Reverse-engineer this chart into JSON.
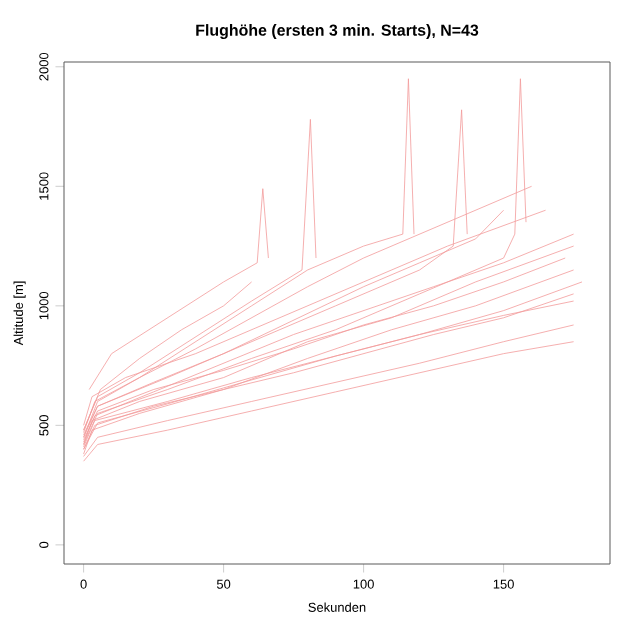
{
  "chart_data": {
    "type": "line",
    "title": "Flughöhe (ersten 3 min. Starts), N=43",
    "xlabel": "Sekunden",
    "ylabel": "Altitude [m]",
    "xlim": [
      -7,
      188
    ],
    "ylim": [
      -80,
      2020
    ],
    "xticks": [
      0,
      50,
      100,
      150
    ],
    "yticks": [
      0,
      500,
      1000,
      1500,
      2000
    ],
    "grid": false,
    "marker": "none",
    "line_style": "solid",
    "series": [
      {
        "color": "#f29a9a",
        "x": [
          0,
          3,
          20,
          50,
          80,
          110,
          140,
          175
        ],
        "values": [
          420,
          520,
          600,
          700,
          850,
          950,
          1100,
          1250
        ]
      },
      {
        "color": "#f29a9a",
        "x": [
          0,
          3,
          20,
          50,
          80,
          110,
          140,
          175
        ],
        "values": [
          380,
          480,
          550,
          650,
          780,
          900,
          1000,
          1150
        ]
      },
      {
        "color": "#f29a9a",
        "x": [
          0,
          5,
          30,
          60,
          90,
          120,
          150,
          175
        ],
        "values": [
          350,
          420,
          480,
          560,
          640,
          720,
          800,
          850
        ]
      },
      {
        "color": "#f29a9a",
        "x": [
          0,
          5,
          20,
          40,
          60,
          80,
          100,
          114,
          116,
          118
        ],
        "values": [
          450,
          600,
          700,
          850,
          1000,
          1150,
          1250,
          1300,
          1950,
          1300
        ]
      },
      {
        "color": "#f29a9a",
        "x": [
          0,
          5,
          20,
          40,
          60,
          78,
          81,
          83
        ],
        "values": [
          480,
          620,
          720,
          870,
          1020,
          1150,
          1780,
          1200
        ]
      },
      {
        "color": "#f29a9a",
        "x": [
          2,
          10,
          30,
          50,
          62,
          64,
          66
        ],
        "values": [
          650,
          800,
          950,
          1100,
          1180,
          1490,
          1200
        ]
      },
      {
        "color": "#f29a9a",
        "x": [
          0,
          5,
          30,
          60,
          90,
          120,
          150,
          154,
          156,
          158
        ],
        "values": [
          420,
          550,
          650,
          780,
          900,
          1050,
          1200,
          1300,
          1950,
          1350
        ]
      },
      {
        "color": "#f29a9a",
        "x": [
          0,
          5,
          30,
          60,
          90,
          120,
          132,
          135,
          137
        ],
        "values": [
          460,
          580,
          700,
          850,
          1000,
          1150,
          1250,
          1820,
          1300
        ]
      },
      {
        "color": "#f29a9a",
        "x": [
          0,
          4,
          25,
          50,
          75,
          100,
          125,
          150,
          175
        ],
        "values": [
          400,
          500,
          580,
          650,
          720,
          800,
          880,
          950,
          1050
        ]
      },
      {
        "color": "#f29a9a",
        "x": [
          0,
          4,
          25,
          50,
          75,
          100,
          125,
          150,
          175
        ],
        "values": [
          430,
          540,
          640,
          760,
          880,
          980,
          1080,
          1180,
          1300
        ]
      },
      {
        "color": "#f29a9a",
        "x": [
          0,
          4,
          20,
          40,
          60,
          80,
          100,
          120,
          140,
          160
        ],
        "values": [
          470,
          600,
          700,
          820,
          950,
          1080,
          1200,
          1300,
          1400,
          1500
        ]
      },
      {
        "color": "#f29a9a",
        "x": [
          0,
          5,
          30,
          60,
          90,
          120,
          150,
          175
        ],
        "values": [
          370,
          450,
          520,
          600,
          680,
          760,
          850,
          920
        ]
      },
      {
        "color": "#f29a9a",
        "x": [
          0,
          3,
          15,
          40,
          70,
          100,
          130,
          165
        ],
        "values": [
          500,
          620,
          700,
          800,
          950,
          1100,
          1250,
          1400
        ]
      },
      {
        "color": "#f29a9a",
        "x": [
          0,
          5,
          25,
          50,
          75,
          100,
          125,
          150,
          172
        ],
        "values": [
          440,
          560,
          650,
          730,
          820,
          920,
          1000,
          1100,
          1200
        ]
      },
      {
        "color": "#f29a9a",
        "x": [
          0,
          5,
          30,
          60,
          90,
          120,
          150,
          175
        ],
        "values": [
          400,
          510,
          590,
          690,
          790,
          880,
          960,
          1020
        ]
      },
      {
        "color": "#f29a9a",
        "x": [
          0,
          6,
          20,
          35,
          50,
          60
        ],
        "values": [
          480,
          650,
          780,
          900,
          1000,
          1100
        ]
      },
      {
        "color": "#f29a9a",
        "x": [
          0,
          5,
          25,
          50,
          75,
          100,
          120,
          140,
          150
        ],
        "values": [
          450,
          580,
          680,
          800,
          940,
          1080,
          1180,
          1280,
          1400
        ]
      },
      {
        "color": "#f29a9a",
        "x": [
          0,
          4,
          30,
          60,
          90,
          120,
          150,
          178
        ],
        "values": [
          410,
          520,
          600,
          700,
          790,
          880,
          980,
          1100
        ]
      }
    ]
  }
}
